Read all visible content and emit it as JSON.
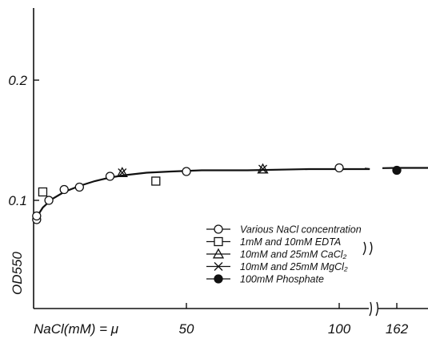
{
  "chart_data": {
    "type": "scatter",
    "xlabel": "NaCl(mM) = μ",
    "ylabel": "OD550",
    "xlim": [
      0,
      162
    ],
    "ylim": [
      0,
      0.2
    ],
    "x_ticks": [
      "50",
      "100",
      "162"
    ],
    "y_ticks": [
      "0.1",
      "0.2"
    ],
    "x_axis_break": true,
    "grid": false,
    "legend_position": "bottom-right",
    "series": [
      {
        "name": "Various NaCl concentration",
        "marker": "open-circle",
        "x": [
          1,
          1,
          5,
          10,
          15,
          25,
          50,
          100
        ],
        "y": [
          0.084,
          0.087,
          0.1,
          0.109,
          0.111,
          0.12,
          0.124,
          0.127
        ]
      },
      {
        "name": "1mM and 10mM EDTA",
        "marker": "open-square",
        "x": [
          3,
          40
        ],
        "y": [
          0.107,
          0.116
        ]
      },
      {
        "name": "10mM and 25mM CaCl₂",
        "marker": "open-triangle",
        "x": [
          29,
          75
        ],
        "y": [
          0.123,
          0.126
        ]
      },
      {
        "name": "10mM and 25mM MgCl₂",
        "marker": "cross",
        "x": [
          29,
          75
        ],
        "y": [
          0.123,
          0.126
        ]
      },
      {
        "name": "100mM Phosphate",
        "marker": "filled-circle",
        "x": [
          162
        ],
        "y": [
          0.125
        ]
      }
    ],
    "fitted_curve": {
      "x": [
        1,
        3,
        6,
        10,
        15,
        20,
        25,
        30,
        37,
        45,
        55,
        70,
        90,
        110,
        125,
        162
      ],
      "y": [
        0.086,
        0.094,
        0.101,
        0.107,
        0.112,
        0.116,
        0.119,
        0.121,
        0.123,
        0.124,
        0.125,
        0.125,
        0.126,
        0.126,
        0.127,
        0.127
      ]
    }
  }
}
